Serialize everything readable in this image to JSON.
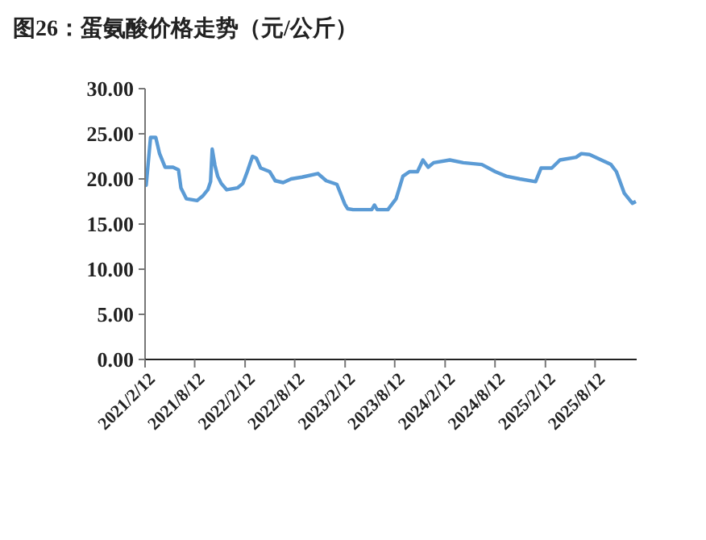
{
  "chart_data": {
    "type": "line",
    "title": "图26：蛋氨酸价格走势（元/公斤）",
    "x": [
      "2021-02-12",
      "2021-02-16",
      "2021-03-04",
      "2021-03-23",
      "2021-04-06",
      "2021-04-26",
      "2021-05-25",
      "2021-06-14",
      "2021-06-23",
      "2021-07-13",
      "2021-08-21",
      "2021-09-10",
      "2021-09-29",
      "2021-10-09",
      "2021-10-15",
      "2021-10-25",
      "2021-11-04",
      "2021-11-17",
      "2021-12-07",
      "2022-01-15",
      "2022-02-04",
      "2022-02-20",
      "2022-03-11",
      "2022-03-25",
      "2022-04-10",
      "2022-05-13",
      "2022-06-02",
      "2022-07-01",
      "2022-07-30",
      "2022-09-08",
      "2022-11-05",
      "2022-12-05",
      "2023-01-13",
      "2023-02-11",
      "2023-02-21",
      "2023-03-13",
      "2023-05-20",
      "2023-05-30",
      "2023-06-09",
      "2023-07-18",
      "2023-08-17",
      "2023-09-11",
      "2023-10-05",
      "2023-11-03",
      "2023-11-23",
      "2023-12-12",
      "2024-01-01",
      "2024-02-29",
      "2024-04-18",
      "2024-06-25",
      "2024-08-13",
      "2024-09-22",
      "2024-11-10",
      "2025-01-07",
      "2025-01-27",
      "2025-03-07",
      "2025-04-06",
      "2025-06-04",
      "2025-06-23",
      "2025-07-23",
      "2025-10-09",
      "2025-10-29",
      "2025-11-27",
      "2025-12-26",
      "2026-01-08"
    ],
    "series": [
      {
        "color": "#5b9bd5",
        "values": [
          19.3,
          19.3,
          24.6,
          24.6,
          22.8,
          21.3,
          21.3,
          21.0,
          19.0,
          17.8,
          17.6,
          18.1,
          18.8,
          19.7,
          23.3,
          21.5,
          20.3,
          19.5,
          18.8,
          19.0,
          19.5,
          20.8,
          22.5,
          22.3,
          21.2,
          20.8,
          19.8,
          19.6,
          20.0,
          20.2,
          20.6,
          19.8,
          19.4,
          17.2,
          16.7,
          16.6,
          16.6,
          17.1,
          16.6,
          16.6,
          17.8,
          20.3,
          20.8,
          20.8,
          22.1,
          21.3,
          21.8,
          22.1,
          21.8,
          21.6,
          20.8,
          20.3,
          20.0,
          19.7,
          21.2,
          21.2,
          22.1,
          22.4,
          22.8,
          22.7,
          21.6,
          20.8,
          18.4,
          17.3,
          17.5
        ]
      }
    ],
    "xlim": [
      "2021-02-12",
      "2026-01-11"
    ],
    "xticks": [
      {
        "value": "2021-02-12",
        "label": "2021/2/12"
      },
      {
        "value": "2021-08-12",
        "label": "2021/8/12"
      },
      {
        "value": "2022-02-12",
        "label": "2022/2/12"
      },
      {
        "value": "2022-08-12",
        "label": "2022/8/12"
      },
      {
        "value": "2023-02-12",
        "label": "2023/2/12"
      },
      {
        "value": "2023-08-12",
        "label": "2023/8/12"
      },
      {
        "value": "2024-02-12",
        "label": "2024/2/12"
      },
      {
        "value": "2024-08-12",
        "label": "2024/8/12"
      },
      {
        "value": "2025-02-12",
        "label": "2025/2/12"
      },
      {
        "value": "2025-08-12",
        "label": "2025/8/12"
      }
    ],
    "ylim": [
      0,
      30
    ],
    "yticks": [
      {
        "value": 0,
        "label": "0.00"
      },
      {
        "value": 5,
        "label": "5.00"
      },
      {
        "value": 10,
        "label": "10.00"
      },
      {
        "value": 15,
        "label": "15.00"
      },
      {
        "value": 20,
        "label": "20.00"
      },
      {
        "value": 25,
        "label": "25.00"
      },
      {
        "value": 30,
        "label": "30.00"
      }
    ],
    "marker": "none",
    "line_style": "solid"
  }
}
